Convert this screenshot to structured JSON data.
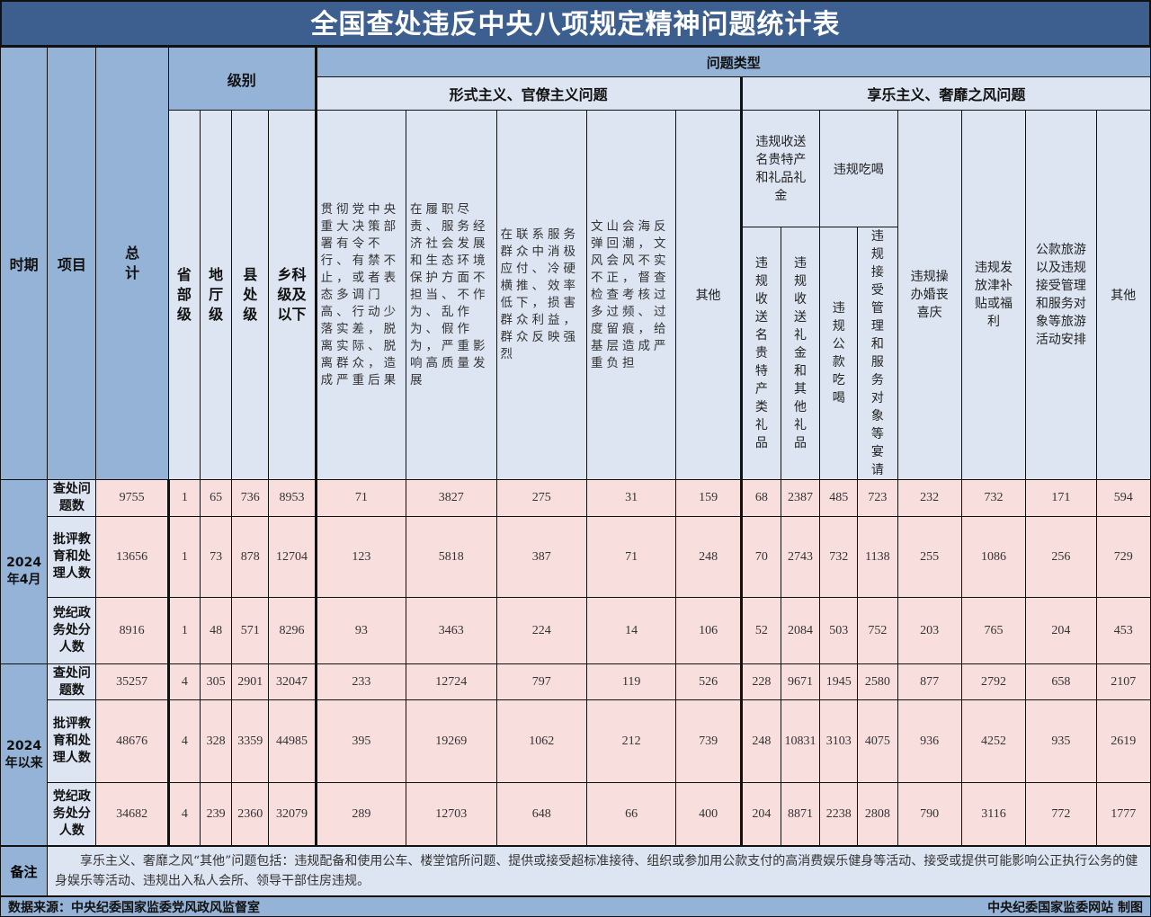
{
  "title": "全国查处违反中央八项规定精神问题统计表",
  "header": {
    "period": "时期",
    "item": "项目",
    "total": "总计",
    "level": "级别",
    "levels": [
      "省部级",
      "地厅级",
      "县处级",
      "乡科级及以下"
    ],
    "problem_type": "问题类型",
    "formalism": {
      "label": "形式主义、官僚主义问题",
      "columns": [
        "贯彻党中央重大决策部署有令不行、有禁不止，或者表态多调门高、行动少落实差，脱离实际、脱离群众，造成严重后果",
        "在履职尽责、服务经济社会发展和生态环境保护方面不担当、不作为、乱作为、假作为，严重影响高质量发展",
        "在联系服务群众中消极应付、冷硬横推、效率低下，损害群众利益，群众反映强烈",
        "文山会海反弹回潮，文风会风不实不正，督查检查考核过多过频、过度留痕，给基层造成严重负担",
        "其他"
      ]
    },
    "hedonism": {
      "label": "享乐主义、奢靡之风问题",
      "gifts": {
        "label": "违规收送名贵特产和礼品礼金",
        "columns": [
          "违规收送名贵特产类礼品",
          "违规收送礼金和其他礼品"
        ]
      },
      "dining": {
        "label": "违规吃喝",
        "columns": [
          "违规公款吃喝",
          "违规接受管理和服务对象等宴请"
        ]
      },
      "columns": [
        "违规操办婚丧喜庆",
        "违规发放津补贴或福利",
        "公款旅游以及违规接受管理和服务对象等旅游活动安排",
        "其他"
      ]
    }
  },
  "groups": [
    {
      "period": "2024年4月",
      "rows": [
        {
          "item": "查处问题数",
          "values": [
            "9755",
            "1",
            "65",
            "736",
            "8953",
            "71",
            "3827",
            "275",
            "31",
            "159",
            "68",
            "2387",
            "485",
            "723",
            "232",
            "732",
            "171",
            "594"
          ]
        },
        {
          "item": "批评教育和处理人数",
          "values": [
            "13656",
            "1",
            "73",
            "878",
            "12704",
            "123",
            "5818",
            "387",
            "71",
            "248",
            "70",
            "2743",
            "732",
            "1138",
            "255",
            "1086",
            "256",
            "729"
          ]
        },
        {
          "item": "党纪政务处分人数",
          "values": [
            "8916",
            "1",
            "48",
            "571",
            "8296",
            "93",
            "3463",
            "224",
            "14",
            "106",
            "52",
            "2084",
            "503",
            "752",
            "203",
            "765",
            "204",
            "453"
          ]
        }
      ]
    },
    {
      "period": "2024年以来",
      "rows": [
        {
          "item": "查处问题数",
          "values": [
            "35257",
            "4",
            "305",
            "2901",
            "32047",
            "233",
            "12724",
            "797",
            "119",
            "526",
            "228",
            "9671",
            "1945",
            "2580",
            "877",
            "2792",
            "658",
            "2107"
          ]
        },
        {
          "item": "批评教育和处理人数",
          "values": [
            "48676",
            "4",
            "328",
            "3359",
            "44985",
            "395",
            "19269",
            "1062",
            "212",
            "739",
            "248",
            "10831",
            "3103",
            "4075",
            "936",
            "4252",
            "935",
            "2619"
          ]
        },
        {
          "item": "党纪政务处分人数",
          "values": [
            "34682",
            "4",
            "239",
            "2360",
            "32079",
            "289",
            "12703",
            "648",
            "66",
            "400",
            "204",
            "8871",
            "2238",
            "2808",
            "790",
            "3116",
            "772",
            "1777"
          ]
        }
      ]
    }
  ],
  "note": {
    "label": "备注",
    "text": "享乐主义、奢靡之风“其他”问题包括：违规配备和使用公车、楼堂馆所问题、提供或接受超标准接待、组织或参加用公款支付的高消费娱乐健身等活动、接受或提供可能影响公正执行公务的健身娱乐等活动、违规出入私人会所、领导干部住房违规。"
  },
  "footer": {
    "source": "数据来源：中央纪委国家监委党风政风监督室",
    "credit": "中央纪委国家监委网站 制图"
  }
}
